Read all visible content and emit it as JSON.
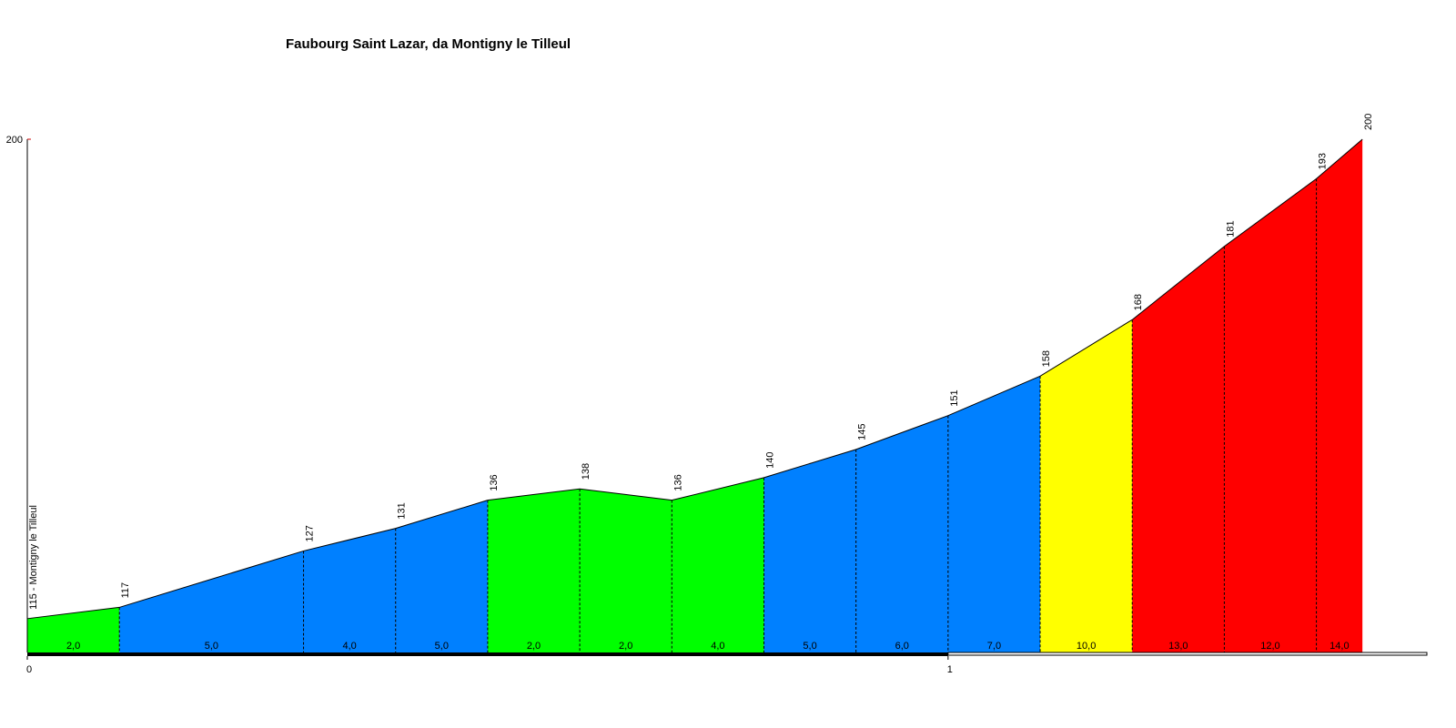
{
  "chart_data": {
    "type": "profile",
    "title": "Faubourg Saint Lazar, da Montigny le Tilleul",
    "x": [
      0,
      0.1,
      0.3,
      0.4,
      0.5,
      0.6,
      0.7,
      0.8,
      0.9,
      1.0,
      1.1,
      1.2,
      1.3,
      1.4,
      1.45
    ],
    "values": [
      115,
      117,
      127,
      131,
      136,
      138,
      136,
      140,
      145,
      151,
      158,
      168,
      181,
      193,
      200
    ],
    "value_labels": [
      "115 - Montigny le Tilleul",
      "117",
      "127",
      "131",
      "136",
      "138",
      "136",
      "140",
      "145",
      "151",
      "158",
      "168",
      "181",
      "193",
      "200"
    ],
    "grades": [
      2,
      5,
      4,
      5,
      2,
      2,
      4,
      5,
      6,
      7,
      10,
      13,
      12,
      14
    ],
    "grade_labels": [
      "2,0",
      "5,0",
      "4,0",
      "5,0",
      "2,0",
      "2,0",
      "4,0",
      "5,0",
      "6,0",
      "7,0",
      "10,0",
      "13,0",
      "12,0",
      "14,0"
    ],
    "segment_colors": [
      "#00ff00",
      "#0080ff",
      "#0080ff",
      "#0080ff",
      "#00ff00",
      "#00ff00",
      "#00ff00",
      "#0080ff",
      "#0080ff",
      "#0080ff",
      "#ffff00",
      "#ff0000",
      "#ff0000",
      "#ff0000"
    ],
    "xlim": [
      0,
      1.52
    ],
    "xticks": [
      0,
      1
    ],
    "ylim": [
      109,
      200
    ],
    "yticks": [
      200
    ]
  }
}
